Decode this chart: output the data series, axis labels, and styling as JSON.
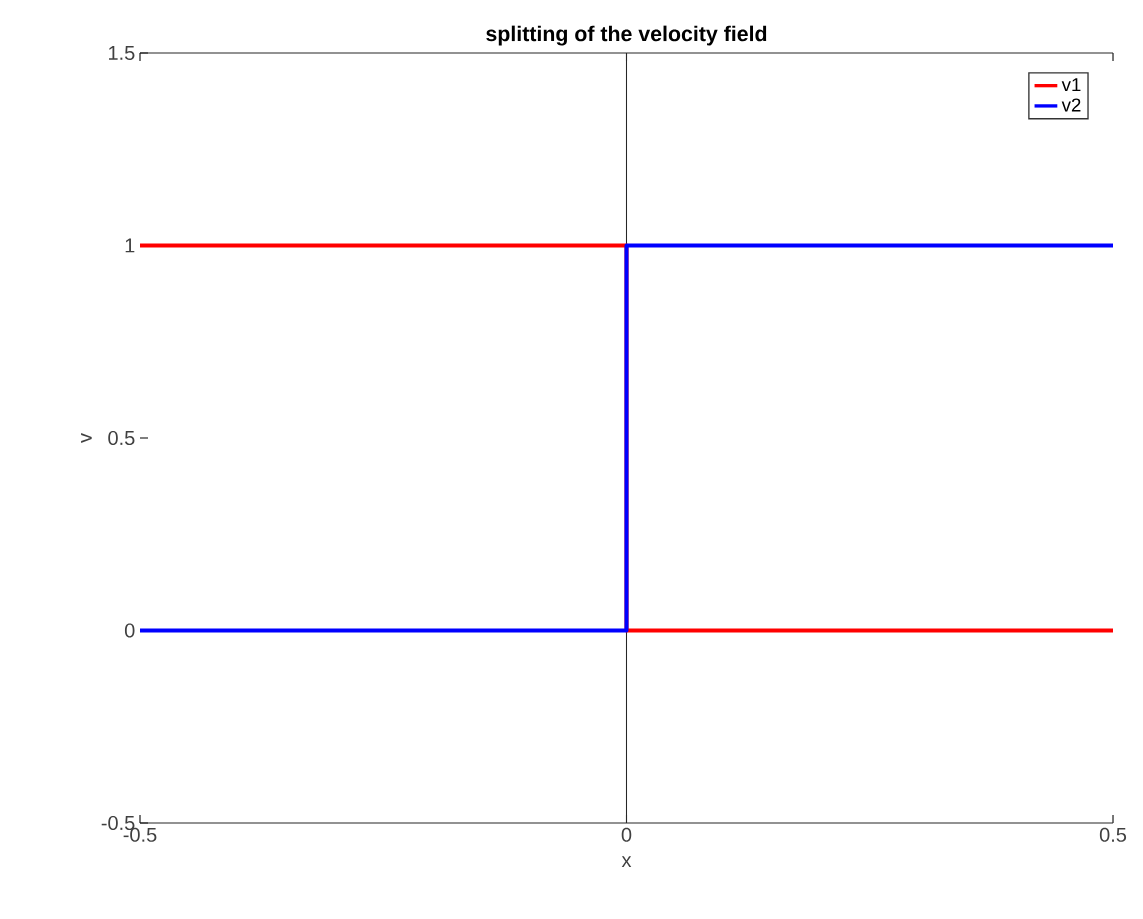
{
  "chart_data": {
    "type": "line",
    "title": "splitting of the velocity field",
    "xlabel": "x",
    "ylabel": "v",
    "x": [
      -0.5,
      0,
      0,
      0.5
    ],
    "series": [
      {
        "name": "v1",
        "color": "#ff0000",
        "values": [
          1,
          1,
          0,
          0
        ]
      },
      {
        "name": "v2",
        "color": "#0000ff",
        "values": [
          0,
          0,
          1,
          1
        ]
      }
    ],
    "xlim": [
      -0.5,
      0.5
    ],
    "ylim": [
      -0.5,
      1.5
    ],
    "xticks": [
      -0.5,
      0,
      0.5
    ],
    "yticks": [
      -0.5,
      0,
      0.5,
      1,
      1.5
    ],
    "ref_lines": [
      {
        "axis": "x",
        "value": 0
      }
    ],
    "legend": "top right"
  }
}
